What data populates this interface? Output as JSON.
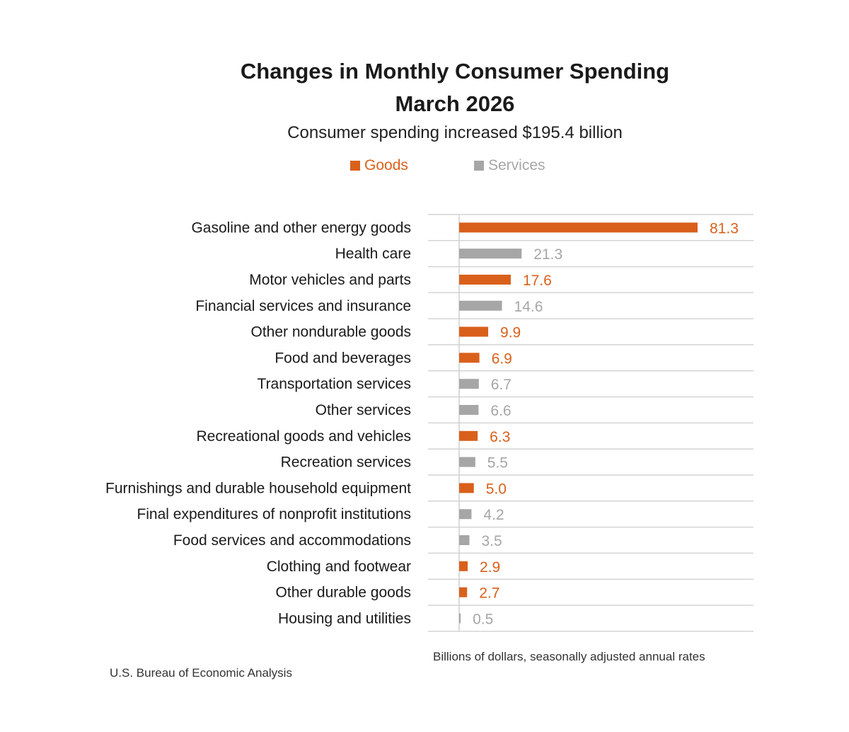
{
  "chart_data": {
    "type": "bar",
    "orientation": "horizontal",
    "title": [
      "Changes in Monthly Consumer Spending",
      "March 2026"
    ],
    "subtitle": "Consumer spending increased $195.4 billion",
    "legend": [
      {
        "name": "Goods",
        "color": "#d9601b"
      },
      {
        "name": "Services",
        "color": "#a6a6a6"
      }
    ],
    "legend_placement": "top",
    "grid": true,
    "categories": [
      "Gasoline and other energy goods",
      "Health care",
      "Motor vehicles and parts",
      "Financial services and insurance",
      "Other nondurable goods",
      "Food and beverages",
      "Transportation services",
      "Other services",
      "Recreational goods and vehicles",
      "Recreation services",
      "Furnishings and durable household equipment",
      "Final expenditures of nonprofit institutions",
      "Food services and accommodations",
      "Clothing and footwear",
      "Other durable goods",
      "Housing and utilities"
    ],
    "values": [
      81.3,
      21.3,
      17.6,
      14.6,
      9.9,
      6.9,
      6.7,
      6.6,
      6.3,
      5.5,
      5.0,
      4.2,
      3.5,
      2.9,
      2.7,
      0.5
    ],
    "value_labels": [
      "81.3",
      "21.3",
      "17.6",
      "14.6",
      "9.9",
      "6.9",
      "6.7",
      "6.6",
      "6.3",
      "5.5",
      "5.0",
      "4.2",
      "3.5",
      "2.9",
      "2.7",
      "0.5"
    ],
    "groups": [
      "Goods",
      "Services",
      "Goods",
      "Services",
      "Goods",
      "Goods",
      "Services",
      "Services",
      "Goods",
      "Services",
      "Goods",
      "Services",
      "Services",
      "Goods",
      "Goods",
      "Services"
    ],
    "xlim": [
      0,
      100
    ],
    "xlabel": "Billions of dollars, seasonally adjusted annual rates",
    "source": "U.S. Bureau of Economic Analysis"
  }
}
